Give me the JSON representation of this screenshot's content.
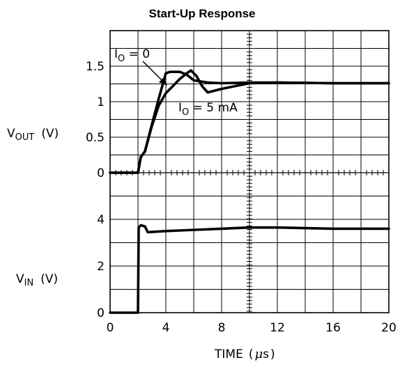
{
  "chart_data": {
    "type": "line",
    "title": "Start-Up Response",
    "x_axis": {
      "label_main": "TIME",
      "label_open": "(",
      "label_unit_prefix": "μ",
      "label_unit": "s",
      "label_close": ")",
      "range": [
        0,
        20
      ],
      "ticks": [
        "0",
        "4",
        "8",
        "12",
        "16",
        "20"
      ],
      "tick_values": [
        0,
        4,
        8,
        12,
        16,
        20
      ]
    },
    "panels": [
      {
        "name": "vout",
        "ylabel_main": "V",
        "ylabel_sub": "OUT",
        "ylabel_unit": "(V)",
        "ylim": [
          0,
          2
        ],
        "yticks": [
          "0",
          "0.5",
          "1",
          "1.5"
        ],
        "ytick_values": [
          0,
          0.5,
          1,
          1.5
        ],
        "series": [
          {
            "name": "I_O = 0",
            "x": [
              0,
              2.0,
              2.2,
              2.5,
              3.0,
              3.5,
              4.0,
              4.3,
              5.0,
              5.5,
              6.0,
              7.0,
              8.0,
              10.0,
              12.0,
              16.0,
              20.0
            ],
            "y": [
              0,
              0,
              0.22,
              0.3,
              0.68,
              1.05,
              1.4,
              1.42,
              1.42,
              1.38,
              1.3,
              1.27,
              1.26,
              1.27,
              1.27,
              1.26,
              1.26
            ]
          },
          {
            "name": "I_O = 5 mA",
            "x": [
              0,
              2.0,
              2.2,
              2.5,
              3.0,
              3.5,
              4.0,
              4.5,
              5.0,
              5.5,
              5.8,
              6.2,
              6.6,
              7.0,
              8.0,
              10.0,
              12.0,
              16.0,
              20.0
            ],
            "y": [
              0,
              0,
              0.22,
              0.3,
              0.66,
              0.95,
              1.12,
              1.22,
              1.32,
              1.4,
              1.44,
              1.36,
              1.22,
              1.13,
              1.18,
              1.26,
              1.27,
              1.26,
              1.26
            ]
          }
        ],
        "annotations": [
          {
            "main": "I",
            "sub": "O",
            "rest": " = 0"
          },
          {
            "main": "I",
            "sub": "O",
            "rest": " = 5 mA"
          }
        ]
      },
      {
        "name": "vin",
        "ylabel_main": "V",
        "ylabel_sub": "IN",
        "ylabel_unit": "(V)",
        "ylim": [
          0,
          6
        ],
        "yticks": [
          "0",
          "2",
          "4"
        ],
        "ytick_values": [
          0,
          2,
          4
        ],
        "series": [
          {
            "name": "V_IN",
            "x": [
              0,
              2.0,
              2.05,
              2.2,
              2.5,
              2.7,
              4.0,
              8.0,
              10.0,
              12.0,
              16.0,
              20.0
            ],
            "y": [
              0,
              0,
              3.65,
              3.75,
              3.7,
              3.45,
              3.5,
              3.6,
              3.65,
              3.65,
              3.6,
              3.6
            ]
          }
        ]
      }
    ],
    "grid": true,
    "line_color": "#000000"
  }
}
